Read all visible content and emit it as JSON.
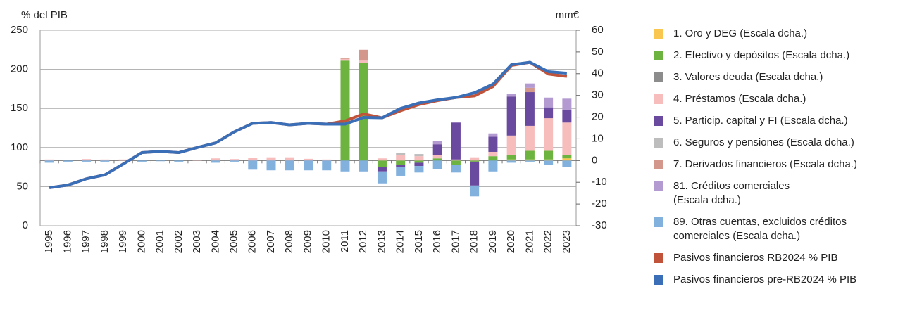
{
  "chart_data": {
    "type": "bar",
    "y_label": "% del PIB",
    "y2_label": "mm€",
    "categories": [
      "1995",
      "1996",
      "1997",
      "1998",
      "1999",
      "2000",
      "2001",
      "2002",
      "2003",
      "2004",
      "2005",
      "2006",
      "2007",
      "2008",
      "2009",
      "2010",
      "2011",
      "2012",
      "2013",
      "2014",
      "2015",
      "2016",
      "2017",
      "2018",
      "2019",
      "2020",
      "2021",
      "2022",
      "2023"
    ],
    "ylim": [
      0,
      250
    ],
    "yticks": [
      0,
      50,
      100,
      150,
      200,
      250
    ],
    "y2lim": [
      -30,
      60
    ],
    "y2ticks": [
      -30,
      -20,
      -10,
      0,
      10,
      20,
      30,
      40,
      50,
      60
    ],
    "grid": true,
    "series": [
      {
        "name": "1. Oro y DEG (Escala dcha.)",
        "color": "#f9c74f",
        "axis": "y2",
        "values": [
          0,
          0,
          0,
          0,
          0,
          0,
          0,
          0,
          0,
          0,
          0,
          0,
          0,
          0,
          0,
          0,
          0,
          0,
          0,
          0,
          0,
          0,
          0,
          0,
          0,
          0.5,
          0.5,
          0.5,
          1
        ]
      },
      {
        "name": "2. Efectivo y depósitos (Escala dcha.)",
        "color": "#6db33f",
        "axis": "y2",
        "values": [
          0,
          0,
          0,
          0,
          0,
          0,
          0,
          0,
          0,
          0,
          0,
          0,
          0,
          0,
          0,
          0,
          46,
          45,
          -3,
          -2,
          -1,
          1,
          -2,
          -0.5,
          2,
          2,
          4,
          4,
          1.5
        ]
      },
      {
        "name": "3. Valores deuda (Escala dcha.)",
        "color": "#8c8c8c",
        "axis": "y2",
        "values": [
          0,
          0,
          0,
          0,
          0,
          0,
          0,
          0,
          0,
          0,
          0,
          0,
          0,
          0,
          0,
          0,
          0,
          0,
          0,
          0,
          0,
          0,
          0,
          0,
          0,
          0,
          0,
          0,
          0
        ]
      },
      {
        "name": "4. Préstamos (Escala dcha.)",
        "color": "#f7bcbc",
        "axis": "y2",
        "values": [
          0.5,
          0,
          0.7,
          0.5,
          0.5,
          0,
          0,
          0,
          0.2,
          1,
          0.7,
          1.2,
          1.5,
          1.5,
          0.8,
          0.5,
          0.8,
          1,
          1,
          2.5,
          2,
          1.5,
          0.5,
          1.5,
          2,
          9,
          11.5,
          15,
          15
        ]
      },
      {
        "name": "5. Particip. capital y FI (Escala dcha.)",
        "color": "#6a4a9e",
        "axis": "y2",
        "values": [
          0,
          0,
          0,
          0,
          0,
          0,
          0,
          0,
          0,
          0,
          0,
          0,
          0,
          0,
          0,
          0,
          0,
          0,
          -2,
          -1,
          -1.5,
          5,
          17,
          -11,
          7,
          18,
          15.5,
          5,
          6
        ]
      },
      {
        "name": "6. Seguros y pensiones (Escala dcha.)",
        "color": "#bdbdbd",
        "axis": "y2",
        "values": [
          0,
          0,
          0,
          0,
          0,
          0,
          0,
          0,
          0,
          0,
          0,
          0,
          0,
          0,
          0,
          0,
          0,
          0,
          0,
          1,
          1,
          0,
          0,
          0,
          0,
          0,
          0,
          0,
          0
        ]
      },
      {
        "name": "7. Derivados financieros (Escala dcha.)",
        "color": "#d4978b",
        "axis": "y2",
        "values": [
          0,
          0,
          0,
          0,
          0,
          0,
          0,
          0,
          0,
          0,
          0,
          0,
          0,
          0,
          0,
          0,
          0.5,
          5,
          0,
          0,
          0,
          0,
          0,
          0,
          0,
          0,
          2,
          0,
          0
        ]
      },
      {
        "name": "81. Créditos comerciales\n(Escala dcha.)",
        "color": "#b39bd2",
        "axis": "y2",
        "values": [
          0,
          0,
          0,
          0,
          0,
          0,
          0,
          0,
          0,
          0,
          0,
          0,
          0,
          0,
          0,
          0,
          0,
          0,
          0,
          0,
          0,
          1.5,
          0,
          0,
          1.5,
          1.3,
          2,
          4.5,
          5
        ]
      },
      {
        "name": "89. Otras cuentas, excluidos créditos\ncomerciales  (Escala dcha.)",
        "color": "#82b1de",
        "axis": "y2",
        "values": [
          -1,
          -0.5,
          -0.5,
          -0.5,
          0,
          -0.5,
          -0.3,
          -0.5,
          0,
          -1,
          -0.5,
          -4.2,
          -4.5,
          -4.5,
          -4.5,
          -4.5,
          -5,
          -5,
          -5.5,
          -4,
          -3,
          -4,
          -3.5,
          -5,
          -5,
          -1,
          -0.5,
          -2,
          -3
        ]
      },
      {
        "name": "Pasivos financieros RB2024 % PIB",
        "type": "line",
        "color": "#c0533a",
        "axis": "y",
        "values": [
          48.6,
          52,
          60,
          65,
          79,
          93.5,
          95,
          93.5,
          100,
          106,
          120,
          131,
          132,
          129,
          131,
          130,
          134,
          143,
          138,
          147,
          155,
          160,
          164,
          166,
          178,
          205,
          209,
          194,
          191
        ]
      },
      {
        "name": "Pasivos financieros pre-RB2024 % PIB",
        "type": "line",
        "color": "#3a6fb8",
        "axis": "y",
        "values": [
          48.6,
          52,
          60,
          65,
          79,
          93.5,
          95,
          93.5,
          100,
          106,
          120,
          131,
          132,
          129,
          131,
          130,
          130,
          138.5,
          138,
          150,
          157,
          161,
          164,
          170,
          181,
          206,
          209,
          197,
          195
        ]
      }
    ]
  }
}
